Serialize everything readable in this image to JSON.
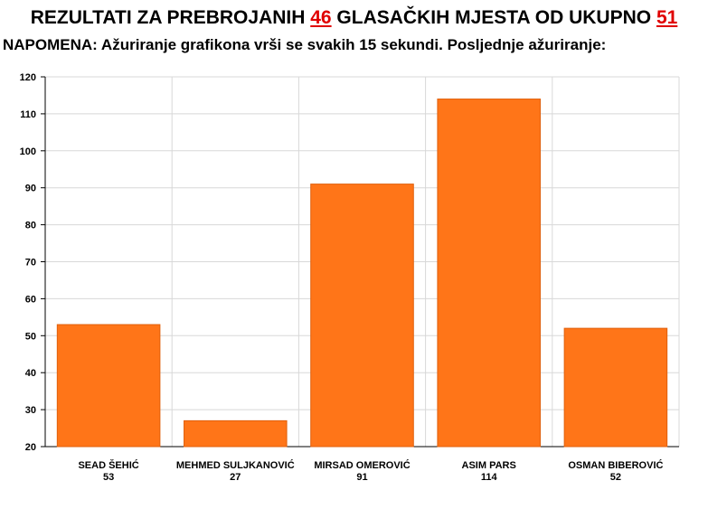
{
  "header": {
    "title_part1": "REZULTATI ZA PREBROJANIH ",
    "counted": "46",
    "title_part2": " GLASAČKIH MJESTA OD UKUPNO ",
    "total": "51",
    "note": "NAPOMENA: Ažuriranje grafikona vrši se svakih 15 sekundi. Posljednje ažuriranje:"
  },
  "colors": {
    "bar": "#ff7518",
    "bar_edge": "#e0600c",
    "grid": "#d8d8d8",
    "highlight": "#e00000"
  },
  "chart_data": {
    "type": "bar",
    "categories": [
      "SEAD ŠEHIĆ",
      "MEHMED SULJKANOVIĆ",
      "MIRSAD OMEROVIĆ",
      "ASIM PARS",
      "OSMAN BIBEROVIĆ"
    ],
    "values": [
      53,
      27,
      91,
      114,
      52
    ],
    "value_labels": [
      "53",
      "27",
      "91",
      "114",
      "52"
    ],
    "ylim": [
      20,
      120
    ],
    "yticks": [
      20,
      30,
      40,
      50,
      60,
      70,
      80,
      90,
      100,
      110,
      120
    ],
    "grid": true
  }
}
